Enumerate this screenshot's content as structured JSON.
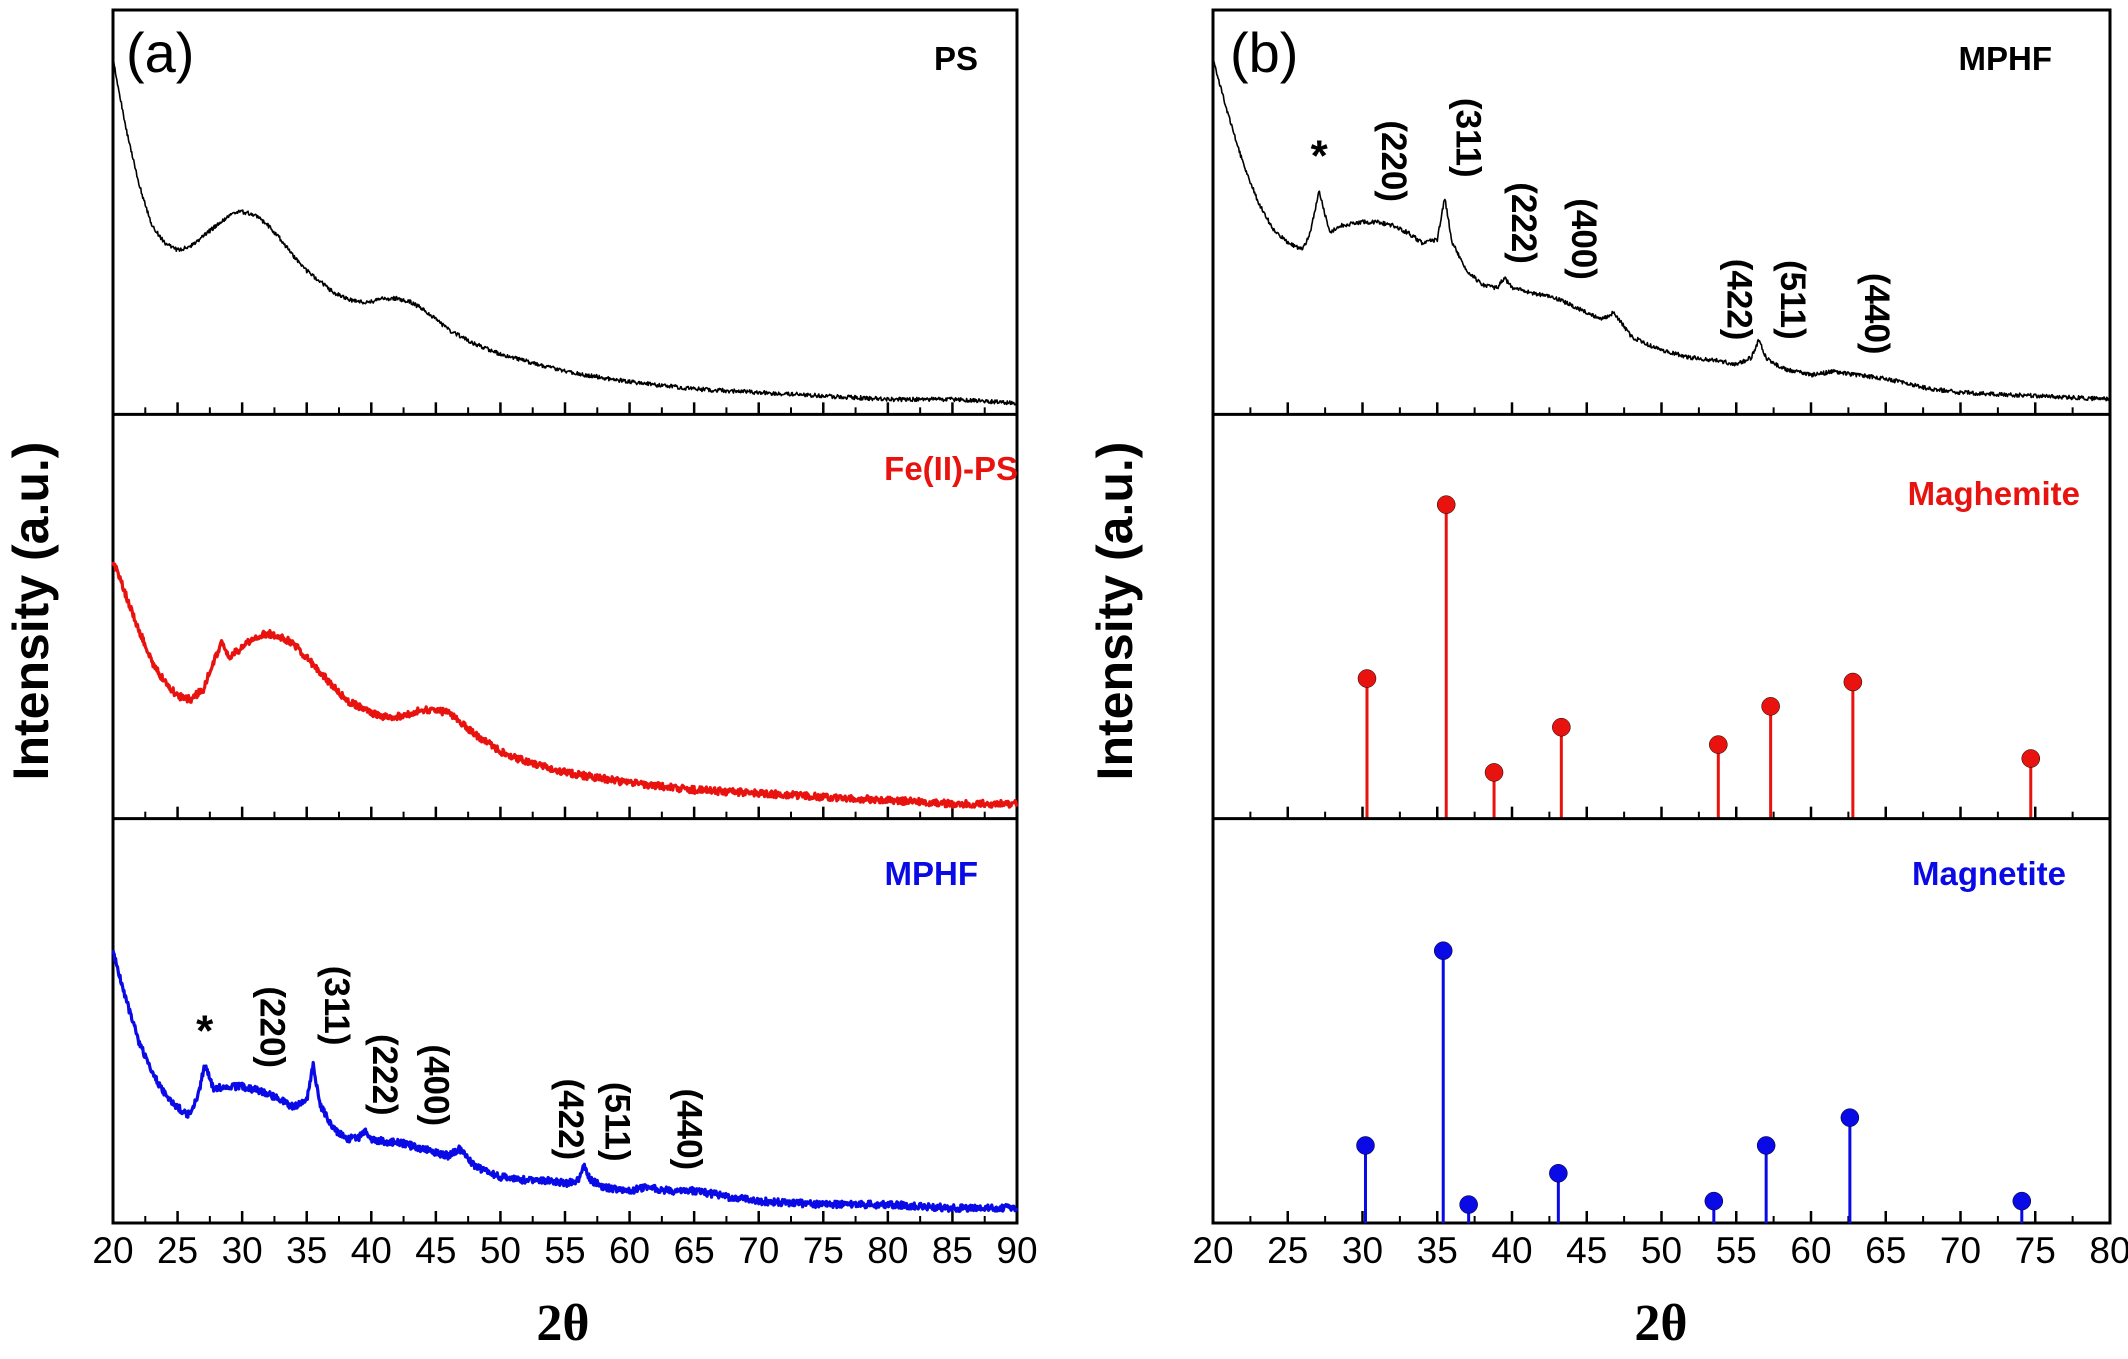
{
  "colors": {
    "ps": "#000000",
    "fe_ps": "#e8120f",
    "mphf": "#0a0ae6",
    "maghemite": "#e8120f",
    "magnetite": "#0a0ae6"
  },
  "chart_data": [
    {
      "id": "a",
      "panel_label": "(a)",
      "type": "line",
      "xlabel": "2θ",
      "ylabel": "Intensity (a.u.)",
      "xlim": [
        20,
        90
      ],
      "xticks": [
        20,
        25,
        30,
        35,
        40,
        45,
        50,
        55,
        60,
        65,
        70,
        75,
        80,
        85,
        90
      ],
      "stacked_panels": [
        {
          "name": "PS",
          "color": "#000000",
          "points": [
            [
              20,
              1.0
            ],
            [
              21,
              0.8
            ],
            [
              22,
              0.64
            ],
            [
              23,
              0.52
            ],
            [
              24,
              0.47
            ],
            [
              25,
              0.45
            ],
            [
              26,
              0.46
            ],
            [
              27,
              0.49
            ],
            [
              28,
              0.52
            ],
            [
              29,
              0.55
            ],
            [
              30,
              0.56
            ],
            [
              31,
              0.55
            ],
            [
              32,
              0.52
            ],
            [
              33,
              0.48
            ],
            [
              34,
              0.43
            ],
            [
              35,
              0.39
            ],
            [
              36,
              0.36
            ],
            [
              37,
              0.33
            ],
            [
              38,
              0.31
            ],
            [
              39,
              0.3
            ],
            [
              40,
              0.3
            ],
            [
              41,
              0.31
            ],
            [
              42,
              0.31
            ],
            [
              43,
              0.3
            ],
            [
              44,
              0.28
            ],
            [
              45,
              0.25
            ],
            [
              46,
              0.22
            ],
            [
              48,
              0.18
            ],
            [
              50,
              0.15
            ],
            [
              52,
              0.13
            ],
            [
              55,
              0.1
            ],
            [
              60,
              0.07
            ],
            [
              65,
              0.05
            ],
            [
              70,
              0.04
            ],
            [
              75,
              0.03
            ],
            [
              80,
              0.02
            ],
            [
              85,
              0.02
            ],
            [
              90,
              0.01
            ]
          ],
          "peaks": []
        },
        {
          "name": "Fe(II)-PS",
          "color": "#e8120f",
          "points": [
            [
              20,
              0.72
            ],
            [
              21,
              0.62
            ],
            [
              22,
              0.52
            ],
            [
              23,
              0.43
            ],
            [
              24,
              0.37
            ],
            [
              25,
              0.33
            ],
            [
              26,
              0.32
            ],
            [
              27,
              0.35
            ],
            [
              27.8,
              0.43
            ],
            [
              28.4,
              0.48
            ],
            [
              29,
              0.44
            ],
            [
              30,
              0.47
            ],
            [
              31,
              0.5
            ],
            [
              32,
              0.51
            ],
            [
              33,
              0.5
            ],
            [
              34,
              0.48
            ],
            [
              35,
              0.44
            ],
            [
              36,
              0.4
            ],
            [
              37,
              0.36
            ],
            [
              38,
              0.32
            ],
            [
              39,
              0.3
            ],
            [
              40,
              0.28
            ],
            [
              41,
              0.27
            ],
            [
              42,
              0.27
            ],
            [
              43,
              0.28
            ],
            [
              44,
              0.29
            ],
            [
              45,
              0.29
            ],
            [
              46,
              0.28
            ],
            [
              47,
              0.25
            ],
            [
              48,
              0.22
            ],
            [
              50,
              0.17
            ],
            [
              52,
              0.14
            ],
            [
              55,
              0.11
            ],
            [
              60,
              0.08
            ],
            [
              65,
              0.06
            ],
            [
              70,
              0.05
            ],
            [
              75,
              0.04
            ],
            [
              80,
              0.03
            ],
            [
              85,
              0.02
            ],
            [
              90,
              0.02
            ]
          ],
          "peaks": []
        },
        {
          "name": "MPHF",
          "color": "#0a0ae6",
          "points": [
            [
              20,
              0.76
            ],
            [
              21,
              0.62
            ],
            [
              22,
              0.5
            ],
            [
              23,
              0.41
            ],
            [
              24,
              0.35
            ],
            [
              25,
              0.31
            ],
            [
              25.8,
              0.29
            ],
            [
              26.5,
              0.33
            ],
            [
              27.1,
              0.43
            ],
            [
              27.8,
              0.36
            ],
            [
              28.5,
              0.37
            ],
            [
              30,
              0.37
            ],
            [
              31,
              0.36
            ],
            [
              32,
              0.35
            ],
            [
              33,
              0.33
            ],
            [
              34,
              0.31
            ],
            [
              35,
              0.33
            ],
            [
              35.5,
              0.43
            ],
            [
              36,
              0.32
            ],
            [
              37,
              0.25
            ],
            [
              38,
              0.22
            ],
            [
              39,
              0.22
            ],
            [
              39.5,
              0.24
            ],
            [
              40,
              0.22
            ],
            [
              41,
              0.21
            ],
            [
              42,
              0.21
            ],
            [
              43,
              0.2
            ],
            [
              44,
              0.19
            ],
            [
              45,
              0.18
            ],
            [
              46,
              0.17
            ],
            [
              46.8,
              0.19
            ],
            [
              47.5,
              0.16
            ],
            [
              48,
              0.14
            ],
            [
              50,
              0.11
            ],
            [
              52,
              0.1
            ],
            [
              54,
              0.1
            ],
            [
              55,
              0.09
            ],
            [
              56,
              0.1
            ],
            [
              56.5,
              0.14
            ],
            [
              57,
              0.1
            ],
            [
              58,
              0.08
            ],
            [
              60,
              0.07
            ],
            [
              61.5,
              0.08
            ],
            [
              63,
              0.07
            ],
            [
              65,
              0.07
            ],
            [
              68,
              0.05
            ],
            [
              70,
              0.04
            ],
            [
              75,
              0.03
            ],
            [
              80,
              0.03
            ],
            [
              85,
              0.02
            ],
            [
              90,
              0.02
            ]
          ],
          "peaks": [
            {
              "label": "*",
              "x": 27.1
            },
            {
              "label": "(220)",
              "x": 30.5
            },
            {
              "label": "(311)",
              "x": 35.5
            },
            {
              "label": "(222)",
              "x": 39.2
            },
            {
              "label": "(400)",
              "x": 43.2
            },
            {
              "label": "(422)",
              "x": 53.6
            },
            {
              "label": "(511)",
              "x": 57.2
            },
            {
              "label": "(440)",
              "x": 62.8
            }
          ]
        }
      ]
    },
    {
      "id": "b",
      "panel_label": "(b)",
      "type": "line",
      "xlabel": "2θ",
      "ylabel": "Intensity (a.u.)",
      "xlim": [
        20,
        80
      ],
      "xticks": [
        20,
        25,
        30,
        35,
        40,
        45,
        50,
        55,
        60,
        65,
        70,
        75,
        80
      ],
      "stacked_panels": [
        {
          "name": "MPHF",
          "color": "#000000",
          "points": [
            [
              20,
              1.0
            ],
            [
              21,
              0.84
            ],
            [
              22,
              0.7
            ],
            [
              23,
              0.59
            ],
            [
              24,
              0.51
            ],
            [
              25,
              0.47
            ],
            [
              26,
              0.45
            ],
            [
              26.5,
              0.5
            ],
            [
              27.1,
              0.62
            ],
            [
              27.8,
              0.5
            ],
            [
              28.5,
              0.52
            ],
            [
              30,
              0.53
            ],
            [
              31,
              0.53
            ],
            [
              32,
              0.52
            ],
            [
              33,
              0.5
            ],
            [
              34,
              0.47
            ],
            [
              35,
              0.48
            ],
            [
              35.5,
              0.6
            ],
            [
              36,
              0.47
            ],
            [
              37,
              0.39
            ],
            [
              38,
              0.35
            ],
            [
              39,
              0.34
            ],
            [
              39.5,
              0.37
            ],
            [
              40,
              0.34
            ],
            [
              41,
              0.33
            ],
            [
              42,
              0.32
            ],
            [
              43,
              0.31
            ],
            [
              44,
              0.29
            ],
            [
              45,
              0.27
            ],
            [
              46,
              0.25
            ],
            [
              46.8,
              0.27
            ],
            [
              47.5,
              0.23
            ],
            [
              48,
              0.2
            ],
            [
              50,
              0.16
            ],
            [
              52,
              0.14
            ],
            [
              54,
              0.13
            ],
            [
              55,
              0.12
            ],
            [
              56,
              0.14
            ],
            [
              56.5,
              0.19
            ],
            [
              57,
              0.14
            ],
            [
              58,
              0.11
            ],
            [
              60,
              0.09
            ],
            [
              61.5,
              0.1
            ],
            [
              63,
              0.09
            ],
            [
              65,
              0.08
            ],
            [
              68,
              0.05
            ],
            [
              70,
              0.04
            ],
            [
              75,
              0.03
            ],
            [
              80,
              0.02
            ]
          ],
          "peaks": [
            {
              "label": "*",
              "x": 27.1
            },
            {
              "label": "(220)",
              "x": 30.5
            },
            {
              "label": "(311)",
              "x": 35.5
            },
            {
              "label": "(222)",
              "x": 39.2
            },
            {
              "label": "(400)",
              "x": 43.2
            },
            {
              "label": "(422)",
              "x": 53.6
            },
            {
              "label": "(511)",
              "x": 57.2
            },
            {
              "label": "(440)",
              "x": 62.8
            }
          ]
        },
        {
          "name": "Maghemite",
          "type": "stem",
          "color": "#e8120f",
          "sticks": [
            [
              30.3,
              0.38
            ],
            [
              35.6,
              0.88
            ],
            [
              38.8,
              0.11
            ],
            [
              43.3,
              0.24
            ],
            [
              53.8,
              0.19
            ],
            [
              57.3,
              0.3
            ],
            [
              62.8,
              0.37
            ],
            [
              74.7,
              0.15
            ]
          ]
        },
        {
          "name": "Magnetite",
          "type": "stem",
          "color": "#0a0ae6",
          "sticks": [
            [
              30.2,
              0.2
            ],
            [
              35.4,
              0.76
            ],
            [
              37.1,
              0.03
            ],
            [
              43.1,
              0.12
            ],
            [
              53.5,
              0.04
            ],
            [
              57.0,
              0.2
            ],
            [
              62.6,
              0.28
            ],
            [
              74.1,
              0.04
            ]
          ]
        }
      ]
    }
  ]
}
